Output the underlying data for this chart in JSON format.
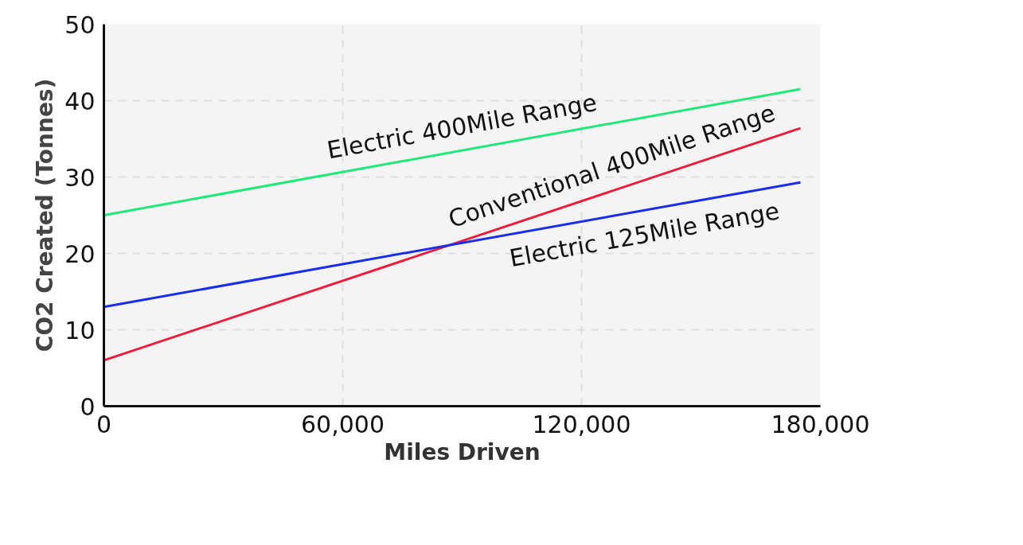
{
  "chart_data": {
    "type": "line",
    "xlabel": "Miles Driven",
    "ylabel": "CO2 Created (Tonnes)",
    "xlim": [
      0,
      180000
    ],
    "ylim": [
      0,
      50
    ],
    "xticks": [
      0,
      {
        "value": 60000,
        "label": "60,000"
      },
      {
        "value": 120000,
        "label": "120,000"
      },
      {
        "value": 180000,
        "label": "180,000"
      }
    ],
    "yticks": [
      0,
      10,
      20,
      30,
      40,
      50
    ],
    "x": [
      0,
      175000
    ],
    "grid": true,
    "marker": "none",
    "line_style": "solid",
    "series": [
      {
        "name": "Electric 400Mile Range",
        "color": "#22e87a",
        "values": [
          25,
          41.5
        ]
      },
      {
        "name": "Conventional 400Mile Range",
        "color": "#ee1c3a",
        "values": [
          6,
          36.4
        ]
      },
      {
        "name": "Electric 125Mile Range",
        "color": "#1a2ee8",
        "values": [
          13,
          29.3
        ]
      }
    ]
  }
}
